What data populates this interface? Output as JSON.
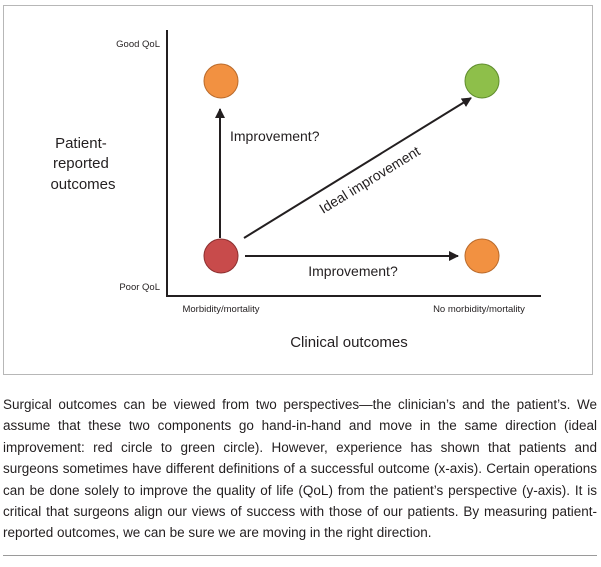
{
  "figure": {
    "y_axis": {
      "top_label": "Good QoL",
      "bottom_label": "Poor QoL",
      "title_lines": [
        "Patient-",
        "reported",
        "outcomes"
      ]
    },
    "x_axis": {
      "left_label": "Morbidity/mortality",
      "right_label": "No morbidity/mortality",
      "title": "Clinical outcomes"
    },
    "arrows": {
      "vertical": "Improvement?",
      "diagonal": "Ideal improvement",
      "horizontal": "Improvement?"
    },
    "colors": {
      "red_circle": "#c84b4b",
      "orange_circle": "#f29141",
      "green_circle": "#8ebf4a",
      "axis": "#231f20"
    }
  },
  "caption": "Surgical outcomes can be viewed from two perspectives—the clinician’s and the patient’s. We assume that these two components go hand-in-hand and move in the same direction (ideal improvement: red circle to green circle). However, experience has shown that patients and surgeons sometimes have different definitions of a successful outcome (x-axis). Certain operations can be done solely to improve the quality of life (QoL) from the patient’s perspective (y-axis). It is critical that surgeons align our views of success with those of our patients. By measuring patient-reported outcomes, we can be sure we are moving in the right direction."
}
